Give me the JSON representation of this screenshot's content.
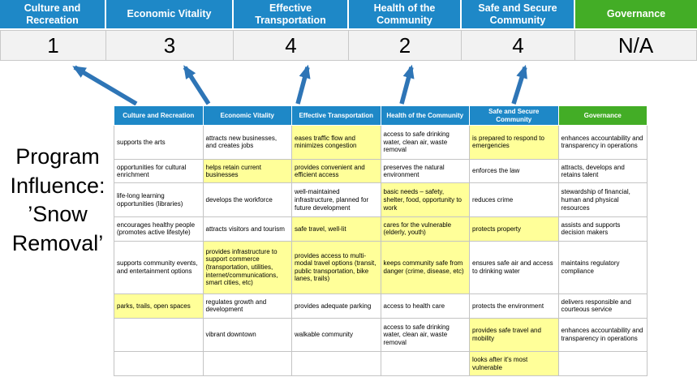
{
  "title": {
    "lines": [
      "Program",
      "Influence:",
      "’Snow",
      "Removal’"
    ]
  },
  "colors": {
    "header_blue": "#1E88C7",
    "header_green": "#43AD26",
    "highlight_yellow": "#FFFF99",
    "arrow_blue": "#2E75B6",
    "score_band_gray": "#F2F2F2"
  },
  "scoreboard": {
    "columns": [
      {
        "label": "Culture and Recreation",
        "score": "1"
      },
      {
        "label": "Economic Vitality",
        "score": "3"
      },
      {
        "label": "Effective Transportation",
        "score": "4"
      },
      {
        "label": "Health of the Community",
        "score": "2"
      },
      {
        "label": "Safe and Secure Community",
        "score": "4"
      },
      {
        "label": "Governance",
        "score": "N/A"
      }
    ]
  },
  "matrix": {
    "headers": [
      "Culture and Recreation",
      "Economic Vitality",
      "Effective Transportation",
      "Health of the Community",
      "Safe and Secure Community",
      "Governance"
    ],
    "rows": [
      [
        {
          "t": "supports the arts",
          "h": false
        },
        {
          "t": "attracts new businesses, and creates jobs",
          "h": false
        },
        {
          "t": "eases traffic flow and minimizes congestion",
          "h": true
        },
        {
          "t": "access to safe drinking water, clean air, waste removal",
          "h": false
        },
        {
          "t": "is prepared to respond to emergencies",
          "h": true
        },
        {
          "t": "enhances accountability and transparency in operations",
          "h": false
        }
      ],
      [
        {
          "t": "opportunities for cultural enrichment",
          "h": false
        },
        {
          "t": "helps retain current businesses",
          "h": true
        },
        {
          "t": "provides convenient and efficient access",
          "h": true
        },
        {
          "t": "preserves the natural environment",
          "h": false
        },
        {
          "t": "enforces the law",
          "h": false
        },
        {
          "t": "attracts, develops and retains talent",
          "h": false
        }
      ],
      [
        {
          "t": "life-long learning opportunities (libraries)",
          "h": false
        },
        {
          "t": "develops the workforce",
          "h": false
        },
        {
          "t": "well-maintained infrastructure, planned for future development",
          "h": false
        },
        {
          "t": "basic needs – safety, shelter, food, opportunity to work",
          "h": true
        },
        {
          "t": "reduces crime",
          "h": false
        },
        {
          "t": "stewardship of financial, human and physical resources",
          "h": false
        }
      ],
      [
        {
          "t": "encourages healthy people (promotes active lifestyle)",
          "h": false
        },
        {
          "t": "attracts visitors and tourism",
          "h": false
        },
        {
          "t": "safe travel, well-lit",
          "h": true
        },
        {
          "t": "cares for the vulnerable (elderly, youth)",
          "h": true
        },
        {
          "t": "protects property",
          "h": true
        },
        {
          "t": "assists and supports decision makers",
          "h": false
        }
      ],
      [
        {
          "t": "supports community events, and entertainment options",
          "h": false
        },
        {
          "t": "provides infrastructure to support commerce (transportation, utilities, internet/communications, smart cities, etc)",
          "h": true
        },
        {
          "t": "provides access to multi-modal travel options (transit, public transportation, bike lanes, trails)",
          "h": true
        },
        {
          "t": "keeps community safe from danger (crime, disease, etc)",
          "h": true
        },
        {
          "t": "ensures safe air and access to drinking water",
          "h": false
        },
        {
          "t": "maintains regulatory compliance",
          "h": false
        }
      ],
      [
        {
          "t": "parks, trails, open spaces",
          "h": true
        },
        {
          "t": "regulates growth and development",
          "h": false
        },
        {
          "t": "provides adequate parking",
          "h": false
        },
        {
          "t": "access to health care",
          "h": false
        },
        {
          "t": "protects the environment",
          "h": false
        },
        {
          "t": "delivers responsible and courteous service",
          "h": false
        }
      ],
      [
        {
          "t": "",
          "h": false
        },
        {
          "t": "vibrant downtown",
          "h": false
        },
        {
          "t": "walkable community",
          "h": false
        },
        {
          "t": "access to safe drinking water, clean air, waste removal",
          "h": false
        },
        {
          "t": "provides safe travel and mobility",
          "h": true
        },
        {
          "t": "enhances accountability and transparency in operations",
          "h": false
        }
      ],
      [
        {
          "t": "",
          "h": false
        },
        {
          "t": "",
          "h": false
        },
        {
          "t": "",
          "h": false
        },
        {
          "t": "",
          "h": false
        },
        {
          "t": "looks after it's most vulnerable",
          "h": true
        },
        {
          "t": "",
          "h": false
        }
      ]
    ]
  }
}
